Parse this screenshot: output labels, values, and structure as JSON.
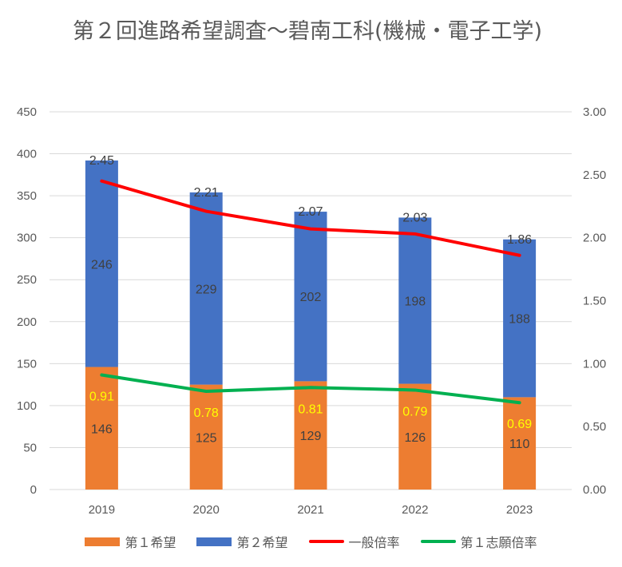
{
  "title": "第２回進路希望調査〜碧南工科(機械・電子工学)",
  "chart_data": {
    "type": "bar",
    "categories": [
      "2019",
      "2020",
      "2021",
      "2022",
      "2023"
    ],
    "bar_series": [
      {
        "name": "第１希望",
        "values": [
          146,
          125,
          129,
          126,
          110
        ],
        "color": "#ED7D31",
        "label_color": "#404040"
      },
      {
        "name": "第２希望",
        "values": [
          246,
          229,
          202,
          198,
          188
        ],
        "color": "#4472C4",
        "label_color": "#404040"
      }
    ],
    "line_series": [
      {
        "name": "一般倍率",
        "values": [
          2.45,
          2.21,
          2.07,
          2.03,
          1.86
        ],
        "color": "#FF0000",
        "labels": [
          "2.45",
          "2.21",
          "2.07",
          "2.03",
          "1.86"
        ],
        "label_color": "#404040"
      },
      {
        "name": "第１志願倍率",
        "values": [
          0.91,
          0.78,
          0.81,
          0.79,
          0.69
        ],
        "color": "#00B050",
        "labels": [
          "0.91",
          "0.78",
          "0.81",
          "0.79",
          "0.69"
        ],
        "label_color": "#FFFF00"
      }
    ],
    "y_left": {
      "min": 0,
      "max": 450,
      "ticks": [
        "0",
        "50",
        "100",
        "150",
        "200",
        "250",
        "300",
        "350",
        "400",
        "450"
      ]
    },
    "y_right": {
      "min": 0,
      "max": 3,
      "ticks": [
        "0.00",
        "0.50",
        "1.00",
        "1.50",
        "2.00",
        "2.50",
        "3.00"
      ]
    },
    "grid": true,
    "legend_position": "bottom"
  }
}
